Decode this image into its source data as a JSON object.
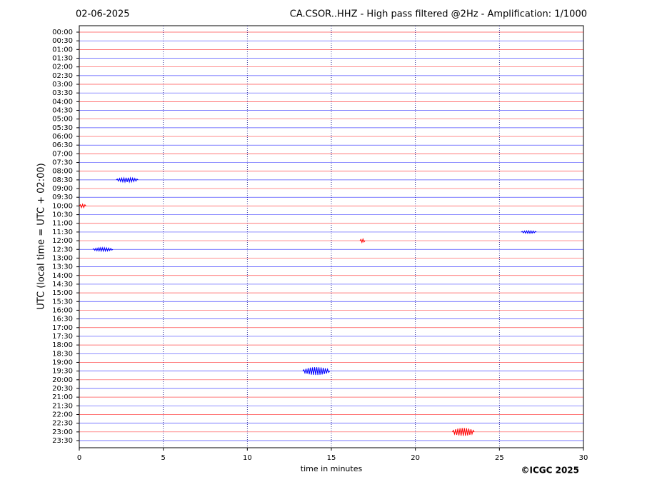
{
  "chart_data": {
    "type": "helicorder",
    "date": "02-06-2025",
    "title": "CA.CSOR..HHZ - High pass filtered @2Hz - Amplification: 1/1000",
    "y_label": "UTC (local time = UTC + 02:00)",
    "x_label": "time in minutes",
    "credit": "©ICGC 2025",
    "rows": [
      "00:00",
      "00:30",
      "01:00",
      "01:30",
      "02:00",
      "02:30",
      "03:00",
      "03:30",
      "04:00",
      "04:30",
      "05:00",
      "05:30",
      "06:00",
      "06:30",
      "07:00",
      "07:30",
      "08:00",
      "08:30",
      "09:00",
      "09:30",
      "10:00",
      "10:30",
      "11:00",
      "11:30",
      "12:00",
      "12:30",
      "13:00",
      "13:30",
      "14:00",
      "14:30",
      "15:00",
      "15:30",
      "16:00",
      "16:30",
      "17:00",
      "17:30",
      "18:00",
      "18:30",
      "19:00",
      "19:30",
      "20:00",
      "20:30",
      "21:00",
      "21:30",
      "22:00",
      "22:30",
      "23:00",
      "23:30"
    ],
    "colors": [
      "#ff0000",
      "#0000ff"
    ],
    "xlim": [
      0,
      30
    ],
    "xticks": [
      0,
      5,
      10,
      15,
      20,
      25,
      30
    ],
    "grid": true,
    "events": [
      {
        "row": 17,
        "x_start": 2.2,
        "x_end": 3.5,
        "amplitude": 0.25
      },
      {
        "row": 20,
        "x_start": 0,
        "x_end": 0.4,
        "amplitude": 0.2
      },
      {
        "row": 23,
        "x_start": 26.3,
        "x_end": 27.2,
        "amplitude": 0.15
      },
      {
        "row": 24,
        "x_start": 16.7,
        "x_end": 17.0,
        "amplitude": 0.2
      },
      {
        "row": 25,
        "x_start": 0.8,
        "x_end": 2.0,
        "amplitude": 0.2
      },
      {
        "row": 39,
        "x_start": 13.3,
        "x_end": 14.9,
        "amplitude": 0.45
      },
      {
        "row": 46,
        "x_start": 22.2,
        "x_end": 23.5,
        "amplitude": 0.45
      }
    ]
  }
}
